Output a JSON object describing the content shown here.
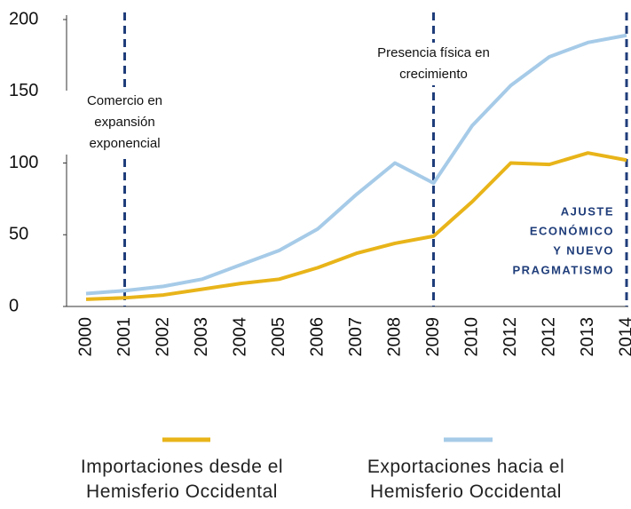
{
  "chart_data": {
    "type": "line",
    "categories": [
      "2000",
      "2001",
      "2002",
      "2003",
      "2004",
      "2005",
      "2006",
      "2007",
      "2008",
      "2009",
      "2010",
      "2012",
      "2012",
      "2013",
      "2014"
    ],
    "series": [
      {
        "name": "Importaciones desde el Hemisferio Occidental",
        "color": "#e8b419",
        "values": [
          5,
          6,
          8,
          12,
          16,
          19,
          27,
          37,
          44,
          49,
          73,
          100,
          99,
          107,
          102
        ]
      },
      {
        "name": "Exportaciones hacia el Hemisferio Occidental",
        "color": "#a6cbe8",
        "values": [
          9,
          11,
          14,
          19,
          29,
          39,
          54,
          78,
          100,
          86,
          126,
          154,
          174,
          184,
          189
        ]
      }
    ],
    "ylim": [
      0,
      200
    ],
    "yticks": [
      0,
      50,
      100,
      150,
      200
    ],
    "grid": false,
    "annotations": [
      {
        "category": "2001",
        "lines": [
          "Comercio en",
          "expansión",
          "exponencial"
        ]
      },
      {
        "category": "2009",
        "lines": [
          "Presencia física en",
          "crecimiento"
        ]
      },
      {
        "category": "2014",
        "lines": [
          "AJUSTE",
          "ECONÓMICO",
          "Y NUEVO",
          "PRAGMATISMO"
        ]
      }
    ]
  }
}
